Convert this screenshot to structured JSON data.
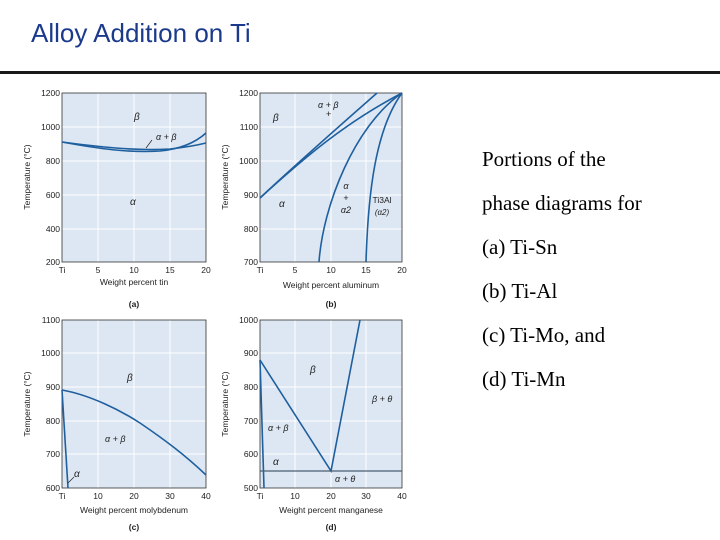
{
  "slide": {
    "title": "Alloy Addition on Ti",
    "caption_lines": [
      "Portions of the",
      "phase diagrams for",
      "(a) Ti-Sn",
      "(b) Ti-Al",
      "(c) Ti-Mo, and",
      "(d) Ti-Mn"
    ]
  },
  "colors": {
    "title": "#1b3a8c",
    "panel_bg": "#dde7f3",
    "grid": "#ffffff",
    "phase_line": "#1f5f9e",
    "eutectoid_line": "#4a6070"
  },
  "panels": [
    {
      "id": "a",
      "panel_label": "(a)",
      "y_axis_label": "Temperature (°C)",
      "x_axis_label": "Weight percent tin",
      "x_ticks": [
        "Ti",
        "5",
        "10",
        "15",
        "20"
      ],
      "y_ticks": [
        "1200",
        "1000",
        "800",
        "600",
        "400",
        "200"
      ],
      "phase_labels": [
        "β",
        "α + β",
        "α"
      ]
    },
    {
      "id": "b",
      "panel_label": "(b)",
      "y_axis_label": "Temperature (°C)",
      "x_axis_label": "Weight percent aluminum",
      "x_ticks": [
        "Ti",
        "5",
        "10",
        "15",
        "20"
      ],
      "y_ticks": [
        "1200",
        "1100",
        "1000",
        "900",
        "800",
        "700"
      ],
      "phase_labels": [
        "α + β",
        "β",
        "α",
        "α",
        "+",
        "α2",
        "Ti3Al",
        "(α2)"
      ]
    },
    {
      "id": "c",
      "panel_label": "(c)",
      "y_axis_label": "Temperature (°C)",
      "x_axis_label": "Weight percent molybdenum",
      "x_ticks": [
        "Ti",
        "10",
        "20",
        "30",
        "40"
      ],
      "y_ticks": [
        "1100",
        "1000",
        "900",
        "800",
        "700",
        "600"
      ],
      "phase_labels": [
        "β",
        "α + β",
        "α"
      ]
    },
    {
      "id": "d",
      "panel_label": "(d)",
      "y_axis_label": "Temperature (°C)",
      "x_axis_label": "Weight percent manganese",
      "x_ticks": [
        "Ti",
        "10",
        "20",
        "30",
        "40"
      ],
      "y_ticks": [
        "1000",
        "900",
        "800",
        "700",
        "600",
        "500"
      ],
      "phase_labels": [
        "β",
        "β + θ",
        "α + β",
        "α",
        "α + θ"
      ]
    }
  ]
}
